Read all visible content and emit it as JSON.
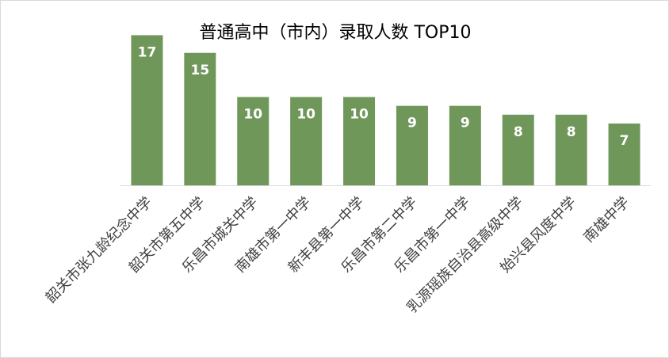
{
  "chart_data": {
    "type": "bar",
    "title": "普通高中（市内）录取人数 TOP10",
    "categories": [
      "韶关市张九龄纪念中学",
      "韶关市第五中学",
      "乐昌市城关中学",
      "南雄市第一中学",
      "新丰县第一中学",
      "乐昌市第二中学",
      "乐昌市第一中学",
      "乳源瑶族自治县高级中学",
      "始兴县风度中学",
      "南雄中学"
    ],
    "values": [
      17,
      15,
      10,
      10,
      10,
      9,
      9,
      8,
      8,
      7
    ],
    "xlabel": "",
    "ylabel": "",
    "ylim": [
      0,
      20
    ],
    "grid": false,
    "legend": "none",
    "data_labels": true,
    "bar_color": "#70975a",
    "axis_color": "#d9d9d9",
    "label_color": "#404040"
  }
}
